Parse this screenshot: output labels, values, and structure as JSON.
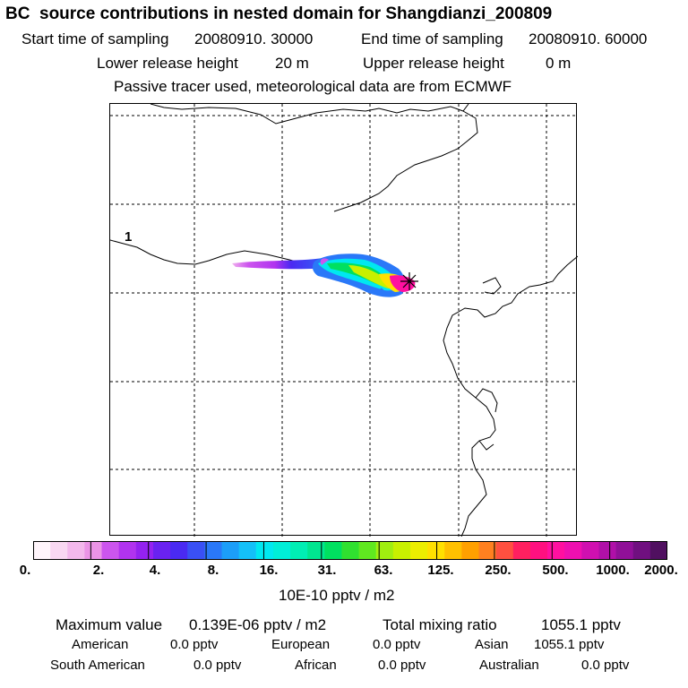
{
  "header": {
    "title": "BC  source contributions in nested domain for Shangdianzi_200809",
    "start_label": "Start time of sampling",
    "start_value": "20080910. 30000",
    "end_label": "End time of sampling",
    "end_value": "20080910. 60000",
    "lower_label": "Lower release height",
    "lower_value": "20 m",
    "upper_label": "Upper release height",
    "upper_value": "0 m",
    "tracer_note": "Passive tracer used, meteorological data are from ECMWF"
  },
  "map": {
    "region_label": "1"
  },
  "colorbar": {
    "tick_labels": [
      "0.",
      "2.",
      "4.",
      "8.",
      "16.",
      "31.",
      "63.",
      "125.",
      "250.",
      "500.",
      "1000.",
      "2000."
    ],
    "units": "10E-10 pptv / m2",
    "colors": [
      "#fff5fb",
      "#f9d8f2",
      "#f3b8ec",
      "#eb94e6",
      "#cc55ee",
      "#b133ef",
      "#9422f0",
      "#6a22f0",
      "#4a2af2",
      "#3a50f5",
      "#2a78f8",
      "#1c9ef8",
      "#14c0f8",
      "#00e8f0",
      "#00eed8",
      "#00eeb4",
      "#00e690",
      "#00e060",
      "#30e030",
      "#60e820",
      "#a0ee10",
      "#c8f000",
      "#ecee00",
      "#ffe000",
      "#ffc000",
      "#ffa000",
      "#ff8020",
      "#ff5040",
      "#ff2060",
      "#ff1080",
      "#ff10a0",
      "#ee10b0",
      "#d010b0",
      "#b010a8",
      "#901098",
      "#701080",
      "#501060"
    ]
  },
  "stats": {
    "max_label": "Maximum value",
    "max_value": "0.139E-06 pptv / m2",
    "total_label": "Total mixing ratio",
    "total_value": "1055.1 pptv",
    "american_label": "American",
    "american_value": "0.0 pptv",
    "european_label": "European",
    "european_value": "0.0 pptv",
    "asian_label": "Asian",
    "asian_value": "1055.1 pptv",
    "south_american_label": "South American",
    "south_american_value": "0.0 pptv",
    "african_label": "African",
    "african_value": "0.0 pptv",
    "australian_label": "Australian",
    "australian_value": "0.0 pptv"
  }
}
